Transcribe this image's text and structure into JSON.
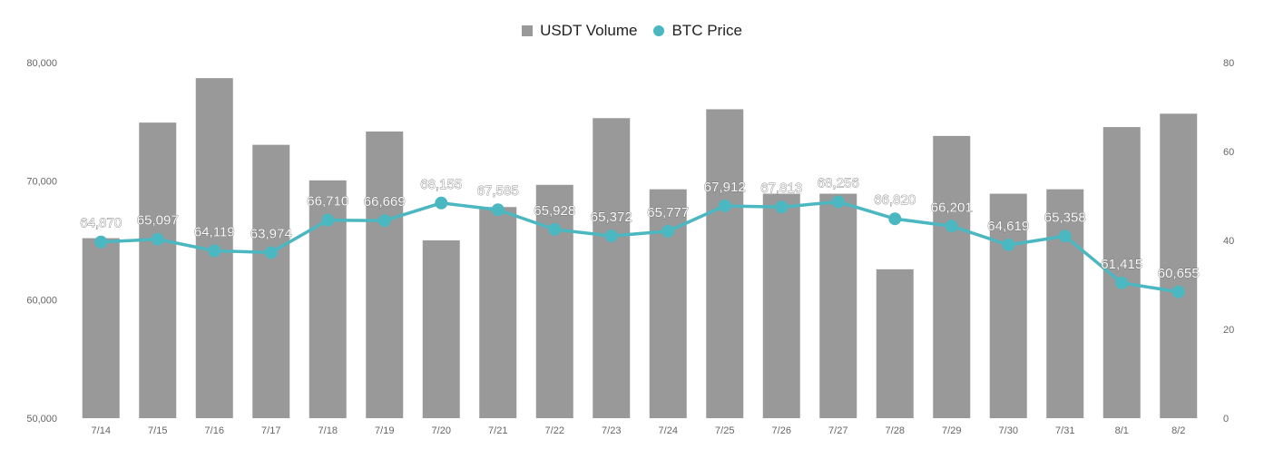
{
  "colors": {
    "bar": "#999999",
    "line": "#4bb7c0",
    "axis_text": "#666666",
    "label": "#ffffff",
    "label_stroke": "#666666"
  },
  "legend": {
    "bar_label": "USDT Volume",
    "line_label": "BTC Price"
  },
  "chart_data": {
    "type": "bar+line",
    "categories": [
      "7/14",
      "7/15",
      "7/16",
      "7/17",
      "7/18",
      "7/19",
      "7/20",
      "7/21",
      "7/22",
      "7/23",
      "7/24",
      "7/25",
      "7/26",
      "7/27",
      "7/28",
      "7/29",
      "7/30",
      "7/31",
      "8/1",
      "8/2"
    ],
    "series": [
      {
        "name": "USDT Volume",
        "type": "bar",
        "axis": "right",
        "values": [
          40.5,
          66.5,
          76.5,
          61.5,
          53.5,
          64.5,
          40,
          47.5,
          52.5,
          67.5,
          51.5,
          69.5,
          50.5,
          50.5,
          33.5,
          63.5,
          50.5,
          51.5,
          65.5,
          68.5
        ]
      },
      {
        "name": "BTC Price",
        "type": "line",
        "axis": "left",
        "values": [
          64870,
          65097,
          64119,
          63974,
          66710,
          66669,
          68155,
          67585,
          65928,
          65372,
          65777,
          67912,
          67813,
          68256,
          66820,
          66201,
          64619,
          65358,
          61415,
          60655
        ],
        "labels": [
          "64,870",
          "65,097",
          "64,119",
          "63,974",
          "66,710",
          "66,669",
          "68,155",
          "67,585",
          "65,928",
          "65,372",
          "65,777",
          "67,912",
          "67,813",
          "68,256",
          "66,820",
          "66,201",
          "64,619",
          "65,358",
          "61,415",
          "60,655"
        ]
      }
    ],
    "y_left": {
      "min": 50000,
      "max": 80000,
      "ticks": [
        50000,
        60000,
        70000,
        80000
      ],
      "tick_labels": [
        "50,000",
        "60,000",
        "70,000",
        "80,000"
      ]
    },
    "y_right": {
      "min": 0,
      "max": 80,
      "ticks": [
        0,
        20,
        40,
        60,
        80
      ],
      "tick_labels": [
        "0",
        "20",
        "40",
        "60",
        "80"
      ]
    },
    "legend_position": "top-center",
    "grid": false
  }
}
